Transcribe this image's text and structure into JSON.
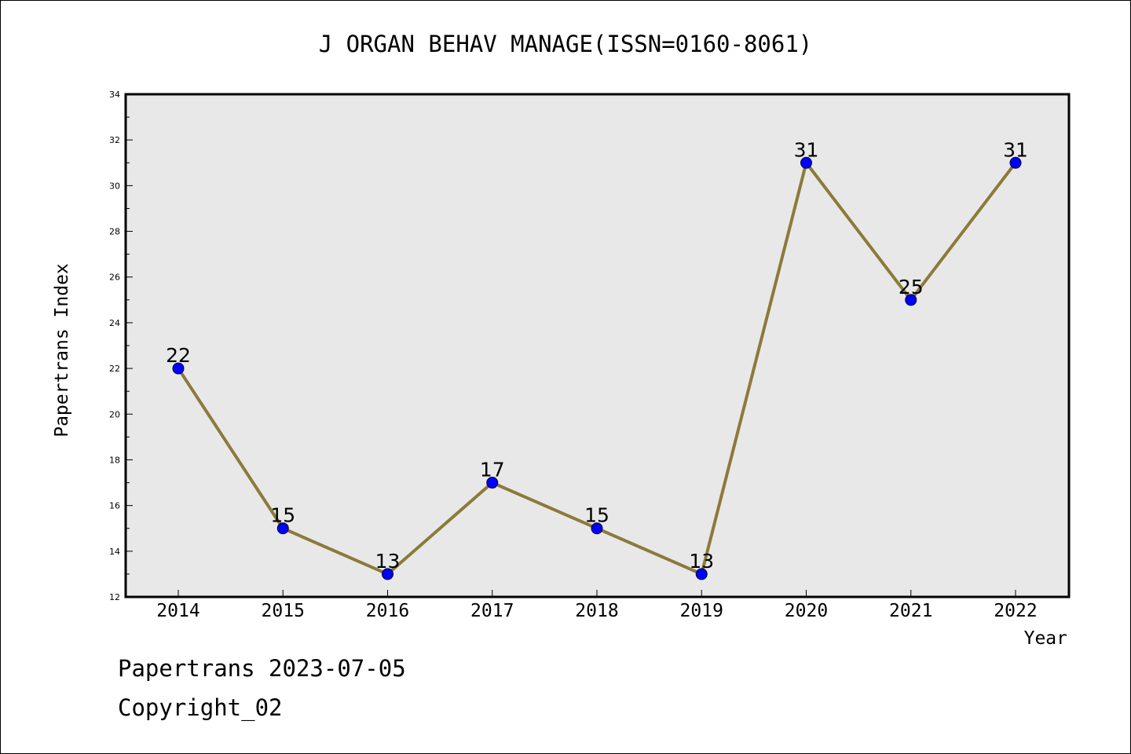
{
  "chart_data": {
    "type": "line",
    "title": "J ORGAN BEHAV MANAGE(ISSN=0160-8061)",
    "xlabel": "Year",
    "ylabel": "Papertrans Index",
    "categories": [
      "2014",
      "2015",
      "2016",
      "2017",
      "2018",
      "2019",
      "2020",
      "2021",
      "2022"
    ],
    "series": [
      {
        "values": [
          22,
          15,
          13,
          17,
          15,
          13,
          31,
          25,
          31
        ]
      }
    ],
    "ylim": [
      12,
      34
    ],
    "yticks": [
      12,
      14,
      16,
      18,
      20,
      22,
      24,
      26,
      28,
      30,
      32,
      34
    ],
    "grid": false,
    "line_color": "#8b7a3a",
    "marker_color": "#0000ff",
    "plot_background": "#e8e8e8"
  },
  "footer": {
    "line1": "Papertrans 2023-07-05",
    "line2": "Copyright_02"
  }
}
